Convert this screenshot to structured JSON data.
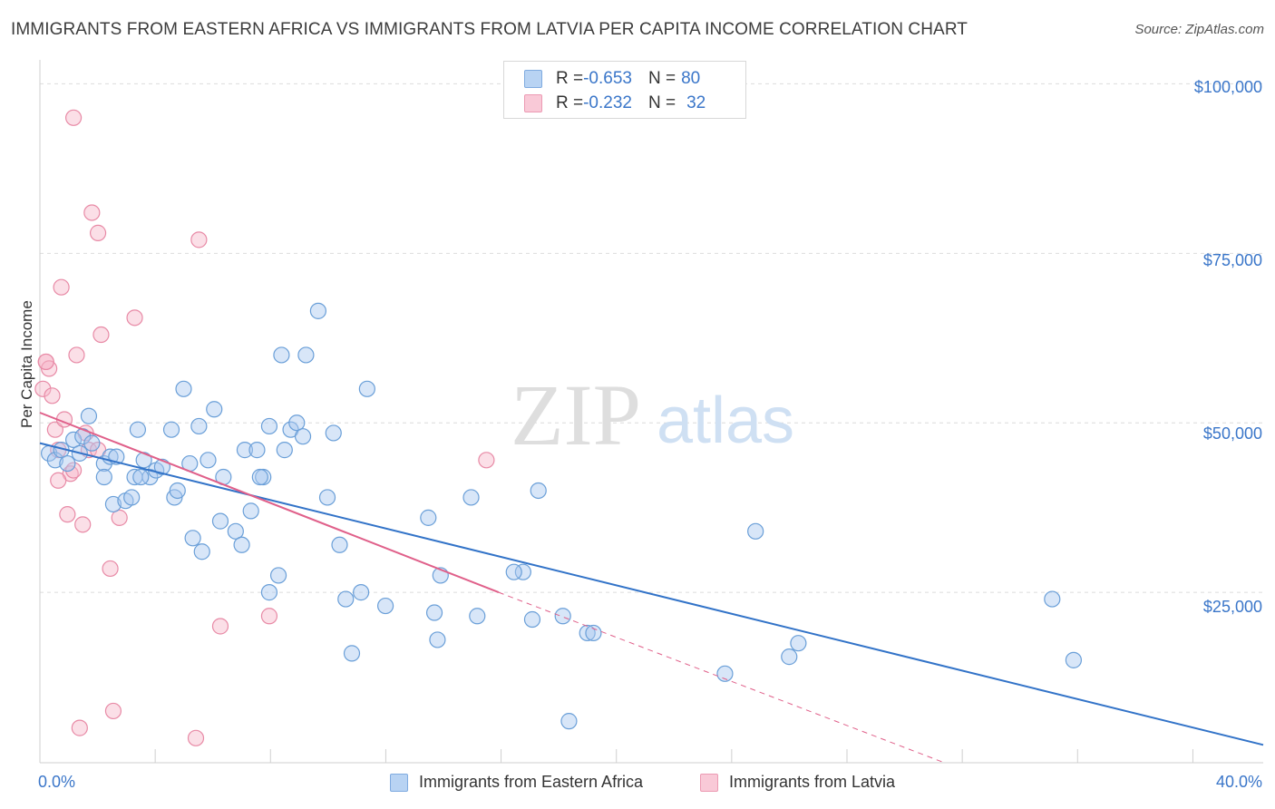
{
  "title": "IMMIGRANTS FROM EASTERN AFRICA VS IMMIGRANTS FROM LATVIA PER CAPITA INCOME CORRELATION CHART",
  "source": "Source: ZipAtlas.com",
  "watermark": {
    "zip": "ZIP",
    "atlas": "atlas"
  },
  "legend": {
    "rows": [
      {
        "r_label": "R = ",
        "r_value": "-0.653",
        "n_label": "N = ",
        "n_value": "80"
      },
      {
        "r_label": "R = ",
        "r_value": "-0.232",
        "n_label": "N = ",
        "n_value": "32"
      }
    ]
  },
  "colors": {
    "blue_fill": "#a9c8ef",
    "blue_stroke": "#6a9fd8",
    "blue_line": "#3273c8",
    "pink_fill": "#f6b8ca",
    "pink_stroke": "#e88aa6",
    "pink_line": "#e0608a",
    "tick_text": "#3a76c9",
    "grid": "#dcdcdc"
  },
  "chart_data": {
    "type": "scatter",
    "title": "IMMIGRANTS FROM EASTERN AFRICA VS IMMIGRANTS FROM LATVIA PER CAPITA INCOME CORRELATION CHART",
    "xlabel": "",
    "ylabel": "Per Capita Income",
    "xlim": [
      0,
      40
    ],
    "ylim": [
      0,
      103000
    ],
    "x_tick_labels": [
      "0.0%",
      "40.0%"
    ],
    "y_ticks": [
      25000,
      50000,
      75000,
      100000
    ],
    "y_tick_labels": [
      "$25,000",
      "$50,000",
      "$75,000",
      "$100,000"
    ],
    "grid": true,
    "series": [
      {
        "name": "Immigrants from Eastern Africa",
        "color": "#a9c8ef",
        "trend": {
          "x": [
            0,
            40
          ],
          "y": [
            47000,
            2500
          ]
        },
        "points": [
          [
            0.3,
            45500
          ],
          [
            0.5,
            44500
          ],
          [
            0.7,
            46000
          ],
          [
            0.9,
            44000
          ],
          [
            1.1,
            47500
          ],
          [
            1.3,
            45500
          ],
          [
            1.4,
            48000
          ],
          [
            1.6,
            51000
          ],
          [
            1.7,
            47000
          ],
          [
            2.1,
            44000
          ],
          [
            2.1,
            42000
          ],
          [
            2.3,
            45000
          ],
          [
            2.4,
            38000
          ],
          [
            2.8,
            38500
          ],
          [
            3.0,
            39000
          ],
          [
            3.1,
            42000
          ],
          [
            3.2,
            49000
          ],
          [
            3.4,
            44500
          ],
          [
            3.6,
            42000
          ],
          [
            3.8,
            43000
          ],
          [
            4.0,
            43500
          ],
          [
            4.3,
            49000
          ],
          [
            4.4,
            39000
          ],
          [
            4.5,
            40000
          ],
          [
            4.7,
            55000
          ],
          [
            4.9,
            44000
          ],
          [
            5.0,
            33000
          ],
          [
            5.2,
            49500
          ],
          [
            5.3,
            31000
          ],
          [
            5.5,
            44500
          ],
          [
            5.7,
            52000
          ],
          [
            5.9,
            35500
          ],
          [
            6.0,
            42000
          ],
          [
            6.4,
            34000
          ],
          [
            6.6,
            32000
          ],
          [
            6.7,
            46000
          ],
          [
            6.9,
            37000
          ],
          [
            7.1,
            46000
          ],
          [
            7.3,
            42000
          ],
          [
            7.5,
            25000
          ],
          [
            7.5,
            49500
          ],
          [
            7.8,
            27500
          ],
          [
            7.9,
            60000
          ],
          [
            8.0,
            46000
          ],
          [
            8.2,
            49000
          ],
          [
            8.4,
            50000
          ],
          [
            8.6,
            48000
          ],
          [
            8.7,
            60000
          ],
          [
            9.1,
            66500
          ],
          [
            9.4,
            39000
          ],
          [
            9.6,
            48500
          ],
          [
            9.8,
            32000
          ],
          [
            10.0,
            24000
          ],
          [
            10.2,
            16000
          ],
          [
            10.5,
            25000
          ],
          [
            10.7,
            55000
          ],
          [
            11.3,
            23000
          ],
          [
            12.7,
            36000
          ],
          [
            12.9,
            22000
          ],
          [
            13.0,
            18000
          ],
          [
            13.1,
            27500
          ],
          [
            14.1,
            39000
          ],
          [
            14.3,
            21500
          ],
          [
            15.8,
            28000
          ],
          [
            16.1,
            21000
          ],
          [
            16.3,
            40000
          ],
          [
            17.1,
            21500
          ],
          [
            17.3,
            6000
          ],
          [
            17.9,
            19000
          ],
          [
            18.1,
            19000
          ],
          [
            22.4,
            13000
          ],
          [
            23.4,
            34000
          ],
          [
            24.5,
            15500
          ],
          [
            24.8,
            17500
          ],
          [
            33.1,
            24000
          ],
          [
            33.8,
            15000
          ],
          [
            15.5,
            28000
          ],
          [
            7.2,
            42000
          ],
          [
            3.3,
            42000
          ],
          [
            2.5,
            45000
          ]
        ]
      },
      {
        "name": "Immigrants from Latvia",
        "color": "#f6b8ca",
        "trend": {
          "x": [
            0,
            15
          ],
          "y": [
            51500,
            25000
          ]
        },
        "trend_dashed": {
          "x": [
            15,
            29.5
          ],
          "y": [
            25000,
            0
          ]
        },
        "points": [
          [
            0.1,
            55000
          ],
          [
            0.2,
            59000
          ],
          [
            0.3,
            58000
          ],
          [
            0.4,
            54000
          ],
          [
            0.5,
            49000
          ],
          [
            0.6,
            46000
          ],
          [
            0.7,
            70000
          ],
          [
            0.8,
            50500
          ],
          [
            0.9,
            36500
          ],
          [
            1.0,
            42500
          ],
          [
            1.1,
            43000
          ],
          [
            1.2,
            60000
          ],
          [
            1.3,
            5000
          ],
          [
            1.4,
            35000
          ],
          [
            1.5,
            48500
          ],
          [
            1.6,
            46000
          ],
          [
            1.7,
            81000
          ],
          [
            1.9,
            78000
          ],
          [
            2.0,
            63000
          ],
          [
            2.3,
            28500
          ],
          [
            2.4,
            7500
          ],
          [
            2.6,
            36000
          ],
          [
            3.1,
            65500
          ],
          [
            1.1,
            95000
          ],
          [
            5.1,
            3500
          ],
          [
            5.2,
            77000
          ],
          [
            5.9,
            20000
          ],
          [
            7.5,
            21500
          ],
          [
            14.6,
            44500
          ],
          [
            0.2,
            59000
          ],
          [
            0.6,
            41500
          ],
          [
            1.9,
            46000
          ]
        ]
      }
    ]
  },
  "bottom_legend": {
    "blue_label": "Immigrants from Eastern Africa",
    "pink_label": "Immigrants from Latvia"
  }
}
